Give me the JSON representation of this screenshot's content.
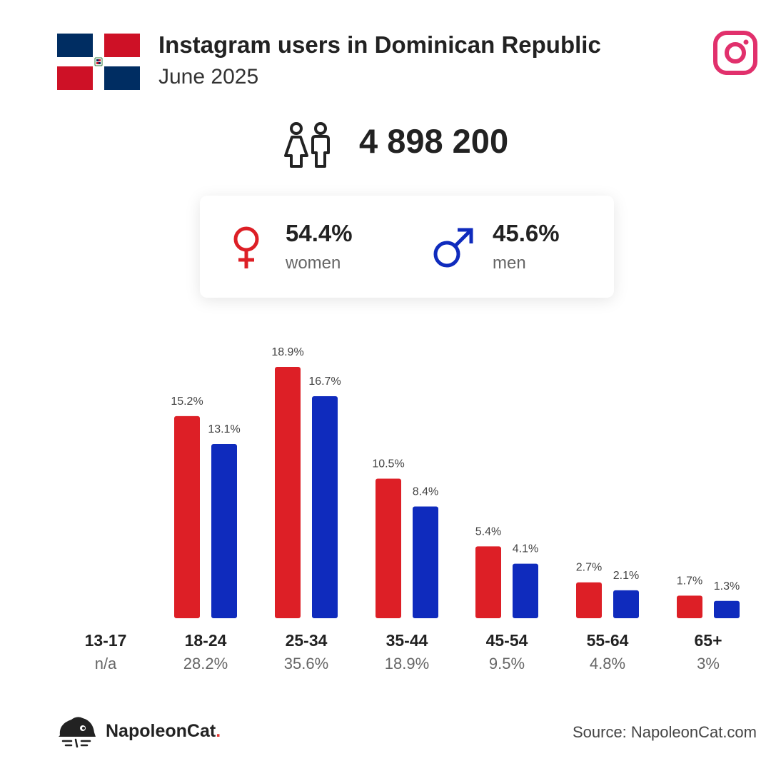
{
  "header": {
    "title": "Instagram users in Dominican Republic",
    "subtitle": "June 2025"
  },
  "total": {
    "value": "4 898 200",
    "icon": "people-icon"
  },
  "gender": {
    "women": {
      "pct": "54.4%",
      "label": "women",
      "icon": "female-icon",
      "color": "#dd1f26"
    },
    "men": {
      "pct": "45.6%",
      "label": "men",
      "icon": "male-icon",
      "color": "#0f2bbd"
    }
  },
  "colors": {
    "women": "#dd1f26",
    "men": "#0f2bbd",
    "instagram": "#e1306c",
    "flag_blue": "#002d62",
    "flag_red": "#ce1126"
  },
  "chart_data": {
    "type": "bar",
    "categories": [
      "13-17",
      "18-24",
      "25-34",
      "35-44",
      "45-54",
      "55-64",
      "65+"
    ],
    "category_totals": [
      "n/a",
      "28.2%",
      "35.6%",
      "18.9%",
      "9.5%",
      "4.8%",
      "3%"
    ],
    "series": [
      {
        "name": "women",
        "color": "#dd1f26",
        "values": [
          null,
          15.2,
          18.9,
          10.5,
          5.4,
          2.7,
          1.7
        ],
        "labels": [
          "",
          "15.2%",
          "18.9%",
          "10.5%",
          "5.4%",
          "2.7%",
          "1.7%"
        ]
      },
      {
        "name": "men",
        "color": "#0f2bbd",
        "values": [
          null,
          13.1,
          16.7,
          8.4,
          4.1,
          2.1,
          1.3
        ],
        "labels": [
          "",
          "13.1%",
          "16.7%",
          "8.4%",
          "4.1%",
          "2.1%",
          "1.3%"
        ]
      }
    ],
    "ylim": [
      0,
      18.9
    ],
    "grid": false
  },
  "footer": {
    "brand": "NapoleonCat",
    "brand_dot": ".",
    "source": "Source: NapoleonCat.com"
  }
}
